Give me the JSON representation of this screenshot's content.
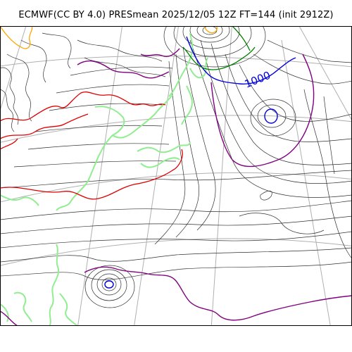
{
  "title": "ECMWF(CC BY 4.0) PRESmean 2025/12/05 12Z FT=144 (init 2912Z)",
  "isobar_label": "1000",
  "colors": {
    "background": "#ffffff",
    "isobar": "#303030",
    "coastline": "#90ee90",
    "graticule": "#b0b0b0",
    "isobar_red": "#e00000",
    "isobar_purple": "#800080",
    "isobar_blue": "#0000e0",
    "isobar_green": "#008000",
    "isobar_orange": "#ffa500"
  }
}
